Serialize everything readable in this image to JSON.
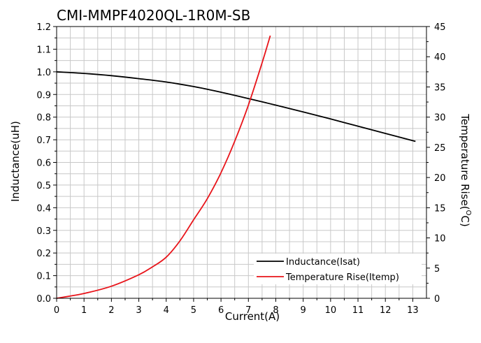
{
  "chart_data": {
    "type": "line",
    "title": "CMI-MMPF4020QL-1R0M-SB",
    "xlabel": "Current(A)",
    "ylabel_left": "Inductance(uH)",
    "ylabel_right_text": "Temperature Rise(",
    "ylabel_right_sup": "O",
    "ylabel_right_end": "C)",
    "xlim": [
      0,
      13.5
    ],
    "ylim_left": [
      0,
      1.2
    ],
    "ylim_right": [
      0,
      45
    ],
    "x_ticks": [
      0,
      1,
      2,
      3,
      4,
      5,
      6,
      7,
      8,
      9,
      10,
      11,
      12,
      13
    ],
    "y_left_ticks": [
      "0.0",
      "0.1",
      "0.2",
      "0.3",
      "0.4",
      "0.5",
      "0.6",
      "0.7",
      "0.8",
      "0.9",
      "1.0",
      "1.1",
      "1.2"
    ],
    "y_right_ticks": [
      0,
      5,
      10,
      15,
      20,
      25,
      30,
      35,
      40,
      45
    ],
    "grid": true,
    "legend_position": "bottom-right",
    "series": [
      {
        "name": "Inductance(Isat)",
        "color": "#000000",
        "axis": "left",
        "x": [
          0,
          1,
          2,
          3,
          4,
          5,
          6,
          7,
          8,
          9,
          10,
          11,
          12,
          13.1
        ],
        "y": [
          1.0,
          0.993,
          0.983,
          0.97,
          0.955,
          0.935,
          0.91,
          0.882,
          0.853,
          0.823,
          0.792,
          0.76,
          0.728,
          0.693
        ]
      },
      {
        "name": "Temperature Rise(Itemp)",
        "color": "#e8141a",
        "axis": "right",
        "x": [
          0,
          1,
          2,
          3,
          3.5,
          4,
          4.5,
          5,
          5.5,
          6,
          6.5,
          7,
          7.5,
          7.8
        ],
        "y": [
          0,
          0.8,
          2.0,
          3.9,
          5.2,
          6.8,
          9.5,
          13.0,
          16.5,
          20.8,
          26.0,
          32.0,
          39.0,
          43.5
        ]
      }
    ]
  }
}
